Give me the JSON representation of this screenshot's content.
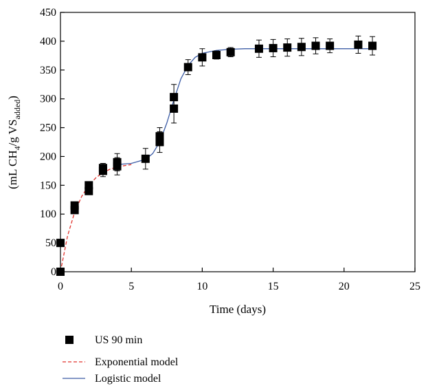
{
  "chart_data": {
    "type": "scatter",
    "xlabel": "Time (days)",
    "ylabel_parts": {
      "open": "(mL CH",
      "ch4_sub": "4",
      "mid": "/g VS",
      "vs_sub": "added",
      "close": ")"
    },
    "xlim": [
      0,
      25
    ],
    "ylim": [
      0,
      450
    ],
    "x_ticks": [
      0,
      5,
      10,
      15,
      20,
      25
    ],
    "y_ticks": [
      0,
      50,
      100,
      150,
      200,
      250,
      300,
      350,
      400,
      450
    ],
    "grid": false,
    "legend_position": "bottom-left",
    "series": [
      {
        "name": "US 90 min",
        "kind": "marker",
        "color": "#000000",
        "points": [
          {
            "x": 0,
            "y": 0,
            "err": 0
          },
          {
            "x": 0,
            "y": 50,
            "err": 0
          },
          {
            "x": 1,
            "y": 107,
            "err": 6
          },
          {
            "x": 1,
            "y": 115,
            "err": 5
          },
          {
            "x": 2,
            "y": 140,
            "err": 6
          },
          {
            "x": 2,
            "y": 150,
            "err": 6
          },
          {
            "x": 3,
            "y": 175,
            "err": 10
          },
          {
            "x": 3,
            "y": 180,
            "err": 8
          },
          {
            "x": 4,
            "y": 183,
            "err": 15
          },
          {
            "x": 4,
            "y": 190,
            "err": 15
          },
          {
            "x": 6,
            "y": 196,
            "err": 18
          },
          {
            "x": 7,
            "y": 225,
            "err": 18
          },
          {
            "x": 7,
            "y": 235,
            "err": 15
          },
          {
            "x": 8,
            "y": 283,
            "err": 25
          },
          {
            "x": 8,
            "y": 303,
            "err": 22
          },
          {
            "x": 9,
            "y": 355,
            "err": 13
          },
          {
            "x": 10,
            "y": 372,
            "err": 15
          },
          {
            "x": 11,
            "y": 376,
            "err": 7
          },
          {
            "x": 12,
            "y": 381,
            "err": 8
          },
          {
            "x": 14,
            "y": 387,
            "err": 15
          },
          {
            "x": 15,
            "y": 388,
            "err": 15
          },
          {
            "x": 16,
            "y": 389,
            "err": 15
          },
          {
            "x": 17,
            "y": 390,
            "err": 15
          },
          {
            "x": 18,
            "y": 392,
            "err": 14
          },
          {
            "x": 19,
            "y": 392,
            "err": 12
          },
          {
            "x": 21,
            "y": 394,
            "err": 15
          },
          {
            "x": 22,
            "y": 392,
            "err": 16
          }
        ]
      },
      {
        "name": "Exponential model",
        "kind": "dashed-line",
        "color": "#e0312b",
        "x": [
          0,
          0.5,
          1,
          1.5,
          2,
          2.5,
          3,
          3.5,
          4,
          4.5,
          5
        ],
        "y": [
          0,
          62,
          103,
          131,
          150,
          163,
          172,
          178,
          182,
          184,
          186
        ]
      },
      {
        "name": "Logistic model",
        "kind": "line",
        "color": "#3b5ba5",
        "x": [
          4,
          5,
          6,
          6.5,
          7,
          7.5,
          8,
          8.5,
          9,
          9.5,
          10,
          11,
          12,
          13,
          15,
          18,
          22
        ],
        "y": [
          186,
          188,
          195,
          205,
          225,
          258,
          298,
          335,
          358,
          372,
          379,
          384,
          386,
          387,
          387,
          387,
          387
        ]
      }
    ]
  }
}
